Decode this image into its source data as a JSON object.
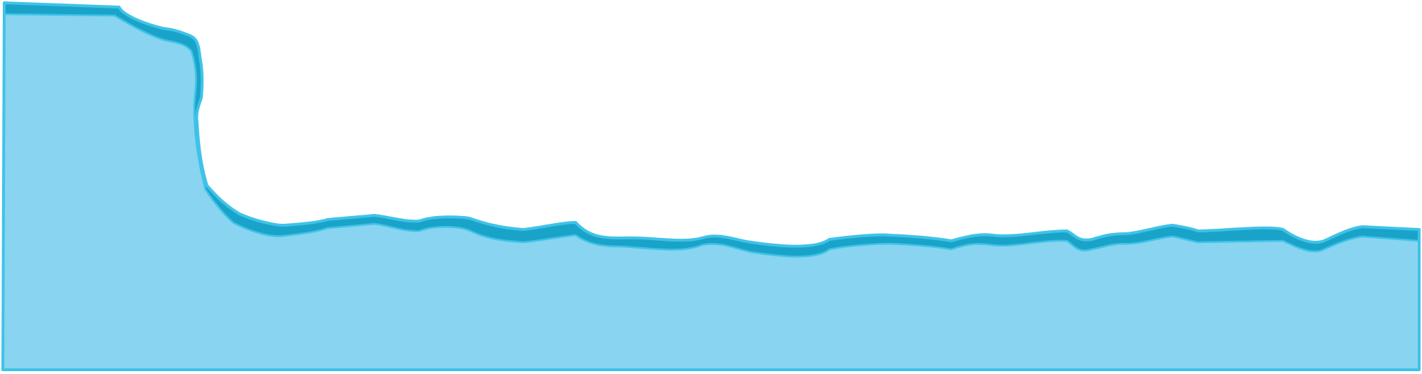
{
  "colors": {
    "background": "#ffffff",
    "water_fill": "#89d4f0",
    "band": "#1aa3c8",
    "outline": "#3fc3e8"
  },
  "shape": {
    "kind": "water-level-profile",
    "border_visible": true,
    "band_visible": true
  }
}
